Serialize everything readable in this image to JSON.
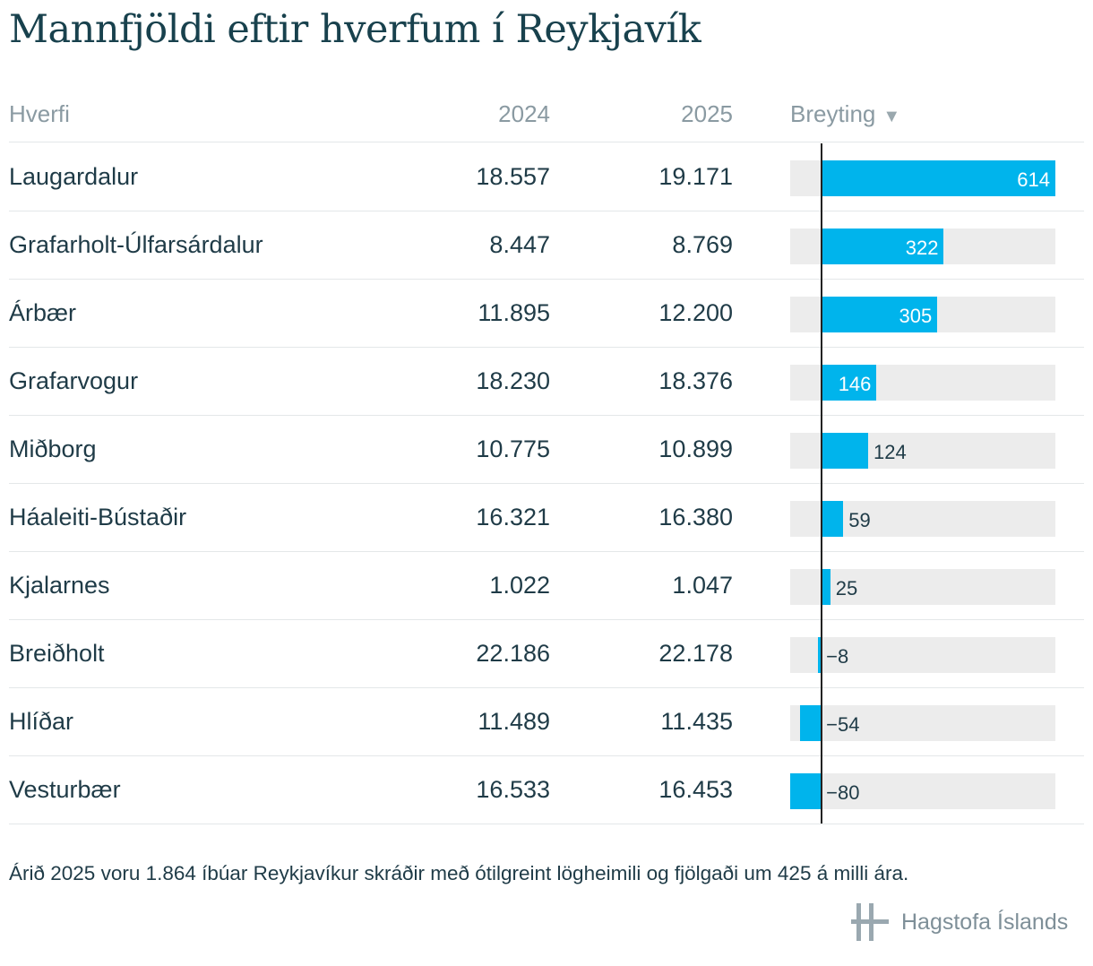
{
  "title": "Mannfjöldi eftir hverfum í Reykjavík",
  "headers": {
    "name": "Hverfi",
    "y2024": "2024",
    "y2025": "2025",
    "change": "Breyting",
    "sort_icon": "triangle-down-icon"
  },
  "colors": {
    "bar": "#00b4ec",
    "track": "#ececec",
    "axis": "#222222"
  },
  "chart_data": {
    "type": "table",
    "columns": [
      "Hverfi",
      "2024",
      "2025",
      "Breyting"
    ],
    "rows": [
      {
        "name": "Laugardalur",
        "y2024": "18.557",
        "y2025": "19.171",
        "change": 614,
        "change_label": "614"
      },
      {
        "name": "Grafarholt-Úlfarsárdalur",
        "y2024": "8.447",
        "y2025": "8.769",
        "change": 322,
        "change_label": "322"
      },
      {
        "name": "Árbær",
        "y2024": "11.895",
        "y2025": "12.200",
        "change": 305,
        "change_label": "305"
      },
      {
        "name": "Grafarvogur",
        "y2024": "18.230",
        "y2025": "18.376",
        "change": 146,
        "change_label": "146"
      },
      {
        "name": "Miðborg",
        "y2024": "10.775",
        "y2025": "10.899",
        "change": 124,
        "change_label": "124"
      },
      {
        "name": "Háaleiti-Bústaðir",
        "y2024": "16.321",
        "y2025": "16.380",
        "change": 59,
        "change_label": "59"
      },
      {
        "name": "Kjalarnes",
        "y2024": "1.022",
        "y2025": "1.047",
        "change": 25,
        "change_label": "25"
      },
      {
        "name": "Breiðholt",
        "y2024": "22.186",
        "y2025": "22.178",
        "change": -8,
        "change_label": "−8"
      },
      {
        "name": "Hlíðar",
        "y2024": "11.489",
        "y2025": "11.435",
        "change": -54,
        "change_label": "−54"
      },
      {
        "name": "Vesturbær",
        "y2024": "16.533",
        "y2025": "16.453",
        "change": -80,
        "change_label": "−80"
      }
    ],
    "change_range": [
      -80,
      614
    ]
  },
  "footnote": "Árið 2025 voru 1.864 íbúar Reykjavíkur skráðir með ótilgreint lögheimili og fjölgaði um 425 á milli ára.",
  "logo": {
    "text": "Hagstofa Íslands",
    "icon": "hagstofa-logo-icon"
  }
}
